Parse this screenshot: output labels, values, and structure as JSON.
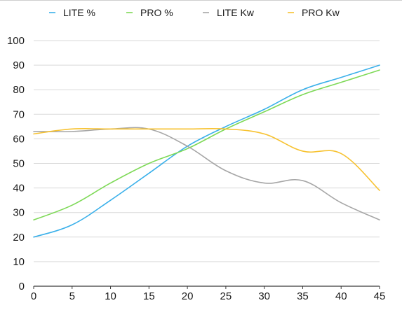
{
  "chart_data": {
    "type": "line",
    "title": "",
    "xlabel": "",
    "ylabel": "",
    "x": [
      0,
      5,
      10,
      15,
      20,
      25,
      30,
      35,
      40,
      45
    ],
    "xlim": [
      0,
      45
    ],
    "ylim": [
      0,
      100
    ],
    "x_ticks": [
      0,
      5,
      10,
      15,
      20,
      25,
      30,
      35,
      40,
      45
    ],
    "y_ticks": [
      0,
      10,
      20,
      30,
      40,
      50,
      60,
      70,
      80,
      90,
      100
    ],
    "grid": true,
    "legend_position": "top",
    "series": [
      {
        "name": "LITE %",
        "color": "#3ab0ea",
        "values": [
          20,
          25,
          35,
          46,
          57,
          65,
          72,
          80,
          85,
          90
        ]
      },
      {
        "name": "PRO %",
        "color": "#7ed957",
        "values": [
          27,
          33,
          42,
          50,
          56,
          64,
          71,
          78,
          83,
          88
        ]
      },
      {
        "name": "LITE  Kw",
        "color": "#a6a6a6",
        "values": [
          63,
          63,
          64,
          64,
          57,
          47,
          42,
          43,
          34,
          27
        ]
      },
      {
        "name": "PRO Kw",
        "color": "#f7c230",
        "values": [
          62,
          64,
          64,
          64,
          64,
          64,
          62,
          55,
          54,
          39
        ]
      }
    ]
  }
}
